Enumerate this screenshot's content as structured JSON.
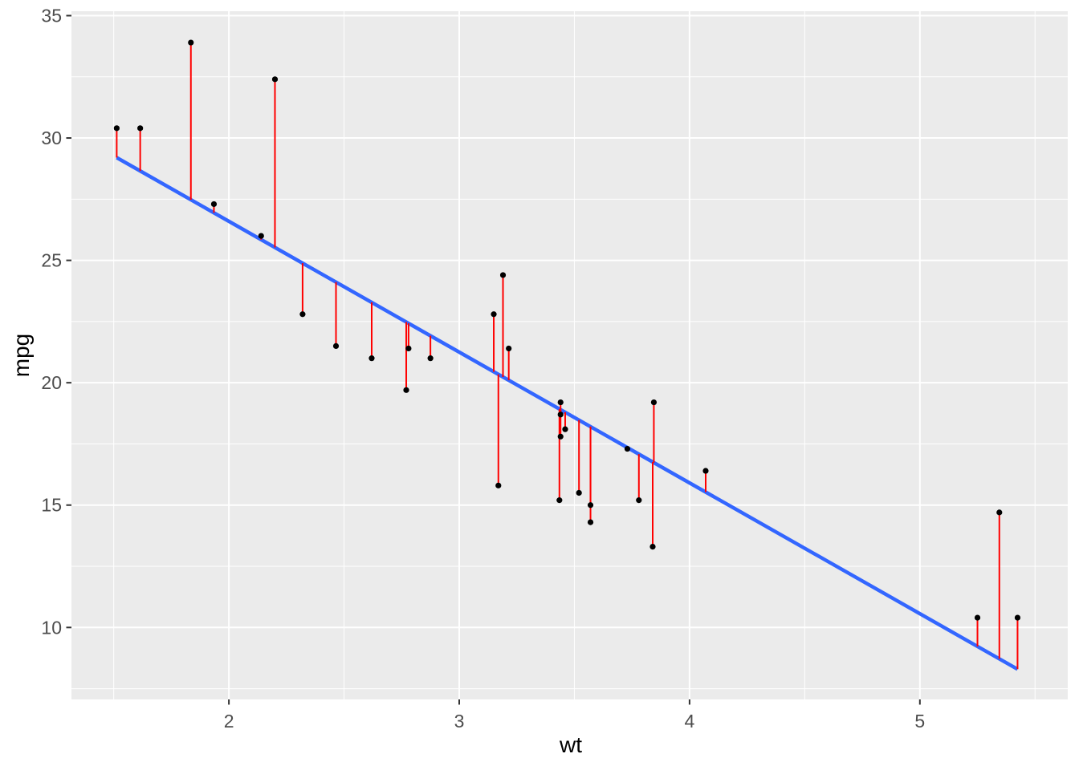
{
  "chart_data": {
    "type": "scatter",
    "title": "",
    "xlabel": "wt",
    "ylabel": "mpg",
    "legend": "none",
    "grid": "major+minor white gridlines on gray panel",
    "axes": {
      "x": {
        "range": [
          1.3165,
          5.642
        ],
        "ticks": [
          2,
          3,
          4,
          5
        ],
        "minor_ticks": [
          1.5,
          2.5,
          3.5,
          4.5,
          5.5
        ]
      },
      "y": {
        "range": [
          7.06,
          35.18
        ],
        "ticks": [
          10,
          15,
          20,
          25,
          30,
          35
        ],
        "minor_ticks": [
          7.5,
          12.5,
          17.5,
          22.5,
          27.5,
          32.5
        ]
      }
    },
    "regression_line": {
      "intercept": 37.2851,
      "slope": -5.3445,
      "x_start": 1.513,
      "x_end": 5.424
    },
    "residual_segments": true,
    "series": [
      {
        "name": "observations",
        "points": [
          [
            2.62,
            21.0
          ],
          [
            2.875,
            21.0
          ],
          [
            2.32,
            22.8
          ],
          [
            3.215,
            21.4
          ],
          [
            3.44,
            18.7
          ],
          [
            3.46,
            18.1
          ],
          [
            3.57,
            14.3
          ],
          [
            3.19,
            24.4
          ],
          [
            3.15,
            22.8
          ],
          [
            3.44,
            19.2
          ],
          [
            3.44,
            17.8
          ],
          [
            4.07,
            16.4
          ],
          [
            3.73,
            17.3
          ],
          [
            3.78,
            15.2
          ],
          [
            5.25,
            10.4
          ],
          [
            5.424,
            10.4
          ],
          [
            5.345,
            14.7
          ],
          [
            2.2,
            32.4
          ],
          [
            1.615,
            30.4
          ],
          [
            1.835,
            33.9
          ],
          [
            2.465,
            21.5
          ],
          [
            3.52,
            15.5
          ],
          [
            3.435,
            15.2
          ],
          [
            3.84,
            13.3
          ],
          [
            3.845,
            19.2
          ],
          [
            1.935,
            27.3
          ],
          [
            2.14,
            26.0
          ],
          [
            1.513,
            30.4
          ],
          [
            3.17,
            15.8
          ],
          [
            2.77,
            19.7
          ],
          [
            3.57,
            15.0
          ],
          [
            2.78,
            21.4
          ]
        ]
      }
    ],
    "colors": {
      "background": "#FFFFFF",
      "panel": "#EBEBEB",
      "grid": "#FFFFFF",
      "point": "#000000",
      "residual": "#FF0000",
      "fit_line": "#3366FF",
      "tick_mark": "#333333",
      "tick_label": "#4D4D4D",
      "axis_title": "#000000"
    }
  }
}
